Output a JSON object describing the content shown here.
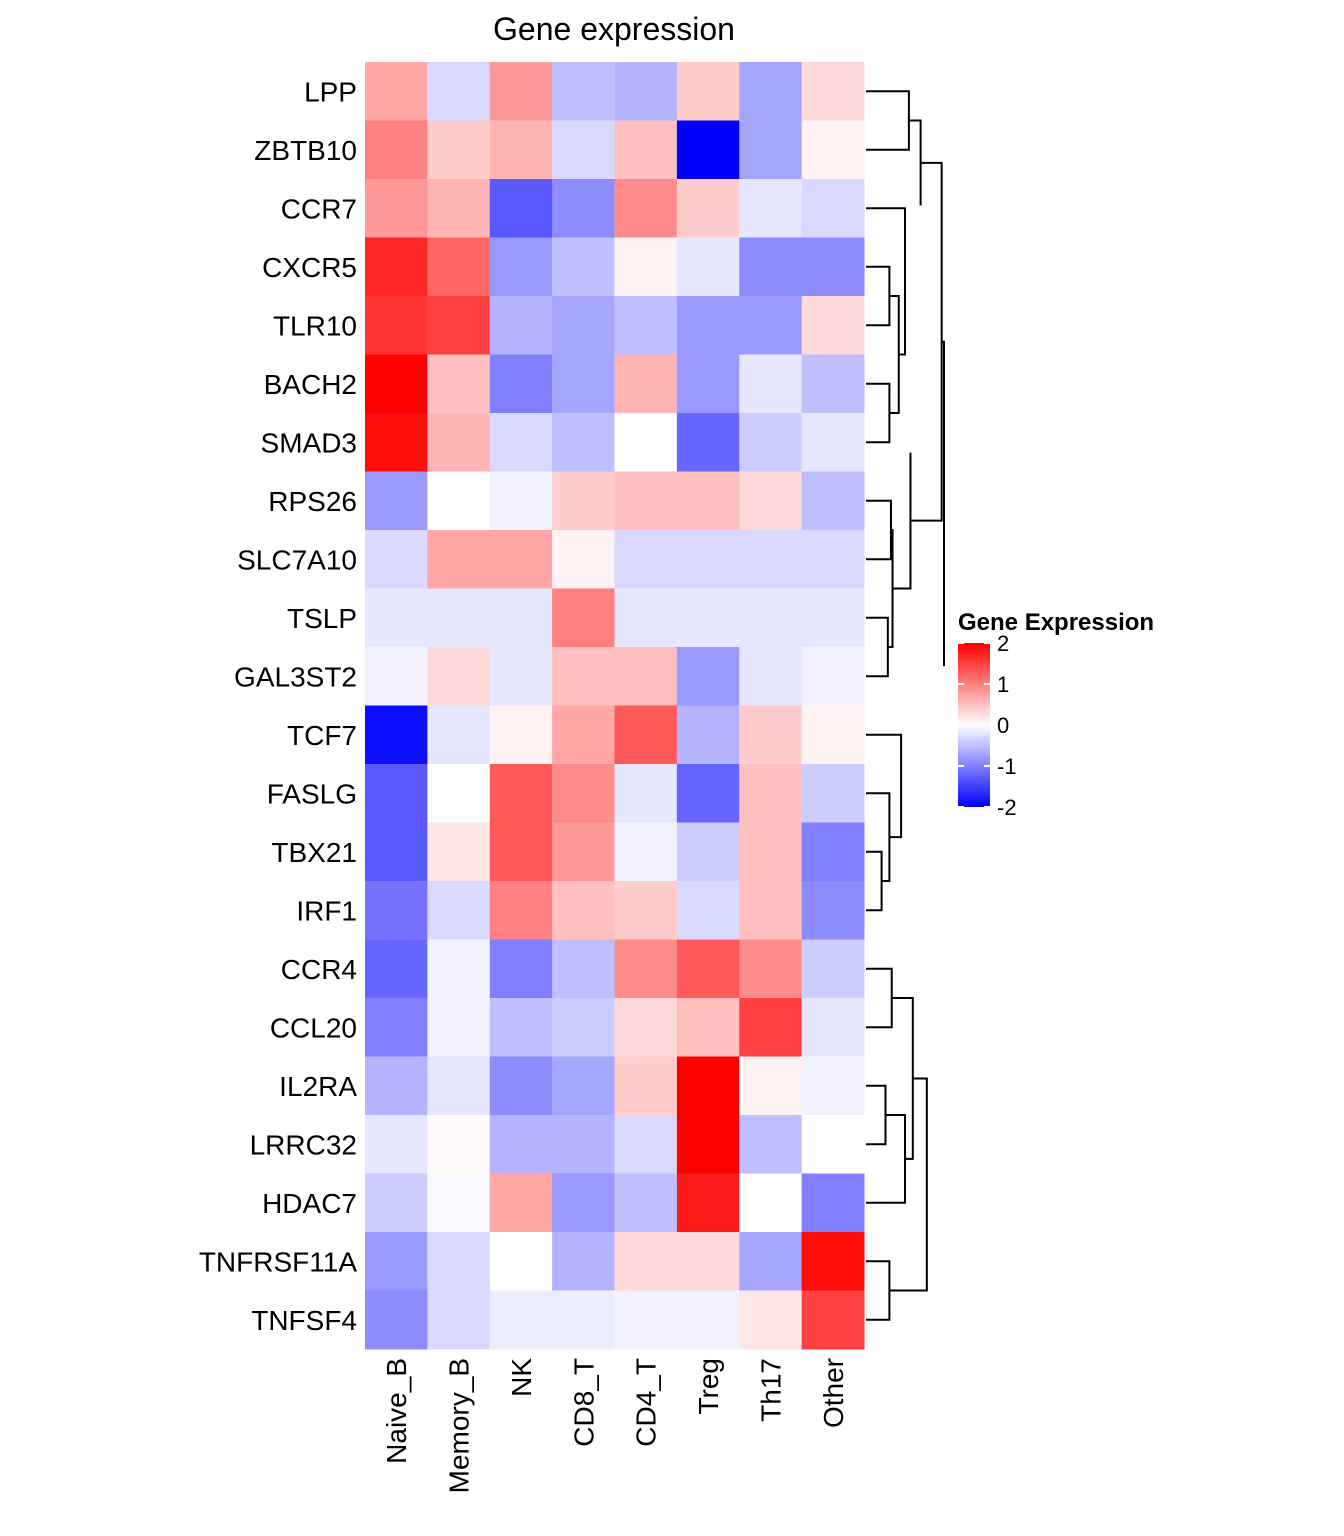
{
  "chart_data": {
    "type": "heatmap",
    "title": "Gene expression",
    "rows": [
      "LPP",
      "ZBTB10",
      "CCR7",
      "CXCR5",
      "TLR10",
      "BACH2",
      "SMAD3",
      "RPS26",
      "SLC7A10",
      "TSLP",
      "GAL3ST2",
      "TCF7",
      "FASLG",
      "TBX21",
      "IRF1",
      "CCR4",
      "CCL20",
      "IL2RA",
      "LRRC32",
      "HDAC7",
      "TNFRSF11A",
      "TNFSF4"
    ],
    "columns": [
      "Naive_B",
      "Memory_B",
      "NK",
      "CD8_T",
      "CD4_T",
      "Treg",
      "Th17",
      "Other"
    ],
    "values": [
      [
        0.7,
        -0.3,
        0.8,
        -0.5,
        -0.6,
        0.4,
        -0.7,
        0.3
      ],
      [
        1.0,
        0.4,
        0.6,
        -0.3,
        0.5,
        -2.0,
        -0.7,
        0.1
      ],
      [
        0.8,
        0.6,
        -1.3,
        -0.9,
        0.9,
        0.4,
        -0.2,
        -0.3
      ],
      [
        1.7,
        1.2,
        -0.8,
        -0.5,
        0.1,
        -0.2,
        -0.9,
        -0.9
      ],
      [
        1.6,
        1.5,
        -0.6,
        -0.7,
        -0.5,
        -0.8,
        -0.8,
        0.3
      ],
      [
        2.0,
        0.5,
        -1.0,
        -0.7,
        0.6,
        -0.8,
        -0.2,
        -0.5
      ],
      [
        1.9,
        0.6,
        -0.3,
        -0.5,
        0.0,
        -1.2,
        -0.4,
        -0.2
      ],
      [
        -0.8,
        0.0,
        -0.1,
        0.4,
        0.5,
        0.5,
        0.3,
        -0.5
      ],
      [
        -0.3,
        0.7,
        0.7,
        0.1,
        -0.3,
        -0.3,
        -0.3,
        -0.3
      ],
      [
        -0.2,
        -0.2,
        -0.2,
        1.0,
        -0.2,
        -0.2,
        -0.2,
        -0.2
      ],
      [
        -0.1,
        0.3,
        -0.2,
        0.5,
        0.5,
        -0.8,
        -0.2,
        -0.1
      ],
      [
        -1.9,
        -0.2,
        0.1,
        0.7,
        1.3,
        -0.6,
        0.4,
        0.1
      ],
      [
        -1.3,
        0.0,
        1.3,
        0.9,
        -0.2,
        -1.2,
        0.5,
        -0.4
      ],
      [
        -1.3,
        0.2,
        1.3,
        0.8,
        -0.1,
        -0.4,
        0.5,
        -1.0
      ],
      [
        -1.1,
        -0.3,
        1.0,
        0.5,
        0.4,
        -0.3,
        0.5,
        -0.9
      ],
      [
        -1.2,
        -0.1,
        -1.0,
        -0.5,
        0.9,
        1.3,
        0.9,
        -0.4
      ],
      [
        -1.0,
        -0.1,
        -0.5,
        -0.4,
        0.3,
        0.5,
        1.5,
        -0.2
      ],
      [
        -0.6,
        -0.2,
        -0.9,
        -0.7,
        0.4,
        2.0,
        0.1,
        -0.1
      ],
      [
        -0.2,
        0.05,
        -0.6,
        -0.6,
        -0.3,
        2.0,
        -0.5,
        0.0
      ],
      [
        -0.4,
        -0.05,
        0.7,
        -0.8,
        -0.5,
        1.8,
        0.0,
        -1.0
      ],
      [
        -0.8,
        -0.3,
        0.0,
        -0.6,
        0.3,
        0.3,
        -0.7,
        1.9
      ],
      [
        -0.9,
        -0.3,
        -0.15,
        -0.15,
        -0.1,
        -0.1,
        0.2,
        1.5
      ]
    ],
    "color_scale": {
      "low": "#0000ff",
      "mid": "#ffffff",
      "high": "#ff0000",
      "min": -2,
      "max": 2
    },
    "legend": {
      "title": "Gene Expression",
      "ticks": [
        2,
        1,
        0,
        -1,
        -2
      ],
      "placement": "right"
    },
    "row_dendrogram": true
  }
}
